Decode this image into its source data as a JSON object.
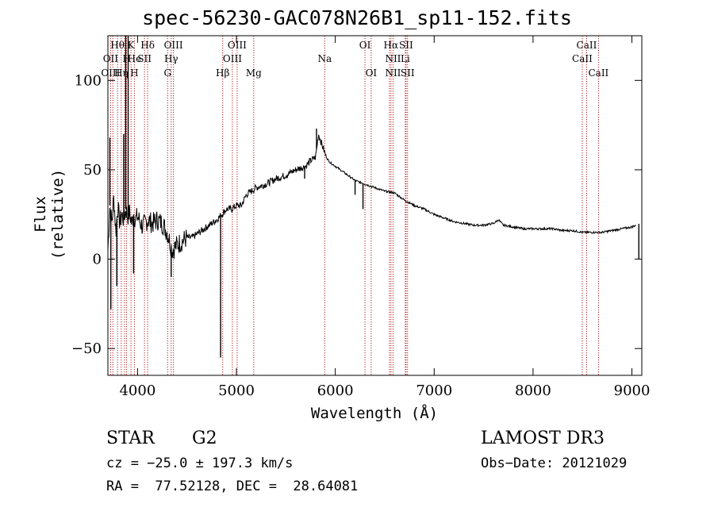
{
  "chart_data": {
    "type": "line",
    "title": "spec-56230-GAC078N26B1_sp11-152.fits",
    "xlabel": "Wavelength (Å)",
    "ylabel": "Flux (relative)",
    "xlim": [
      3700,
      9100
    ],
    "ylim": [
      -65,
      125
    ],
    "x_ticks": [
      4000,
      5000,
      6000,
      7000,
      8000,
      9000
    ],
    "x_tick_labels": [
      "4000",
      "5000",
      "6000",
      "7000",
      "8000",
      "9000"
    ],
    "y_ticks": [
      -50,
      0,
      50,
      100
    ],
    "y_tick_labels": [
      "−50",
      "0",
      "50",
      "100"
    ],
    "series": [
      {
        "name": "flux",
        "color": "#000000",
        "x": [
          3700,
          3720,
          3740,
          3760,
          3780,
          3800,
          3820,
          3840,
          3860,
          3880,
          3900,
          3920,
          3940,
          3960,
          3980,
          4000,
          4050,
          4100,
          4150,
          4200,
          4250,
          4300,
          4350,
          4400,
          4450,
          4500,
          4550,
          4600,
          4650,
          4700,
          4750,
          4800,
          4850,
          4900,
          4950,
          5000,
          5050,
          5100,
          5150,
          5200,
          5300,
          5400,
          5500,
          5600,
          5700,
          5750,
          5800,
          5830,
          5860,
          5890,
          5920,
          5950,
          6000,
          6100,
          6200,
          6300,
          6400,
          6500,
          6600,
          6700,
          6800,
          6900,
          7000,
          7100,
          7200,
          7300,
          7400,
          7500,
          7600,
          7650,
          7700,
          7800,
          7900,
          8000,
          8100,
          8200,
          8300,
          8400,
          8500,
          8600,
          8700,
          8800,
          8900,
          9000,
          9040
        ],
        "y": [
          5,
          30,
          20,
          35,
          15,
          30,
          20,
          25,
          22,
          28,
          24,
          26,
          20,
          25,
          22,
          24,
          18,
          22,
          20,
          22,
          20,
          15,
          5,
          8,
          10,
          12,
          12,
          14,
          16,
          18,
          20,
          22,
          25,
          28,
          28,
          30,
          30,
          36,
          38,
          40,
          42,
          45,
          47,
          50,
          52,
          55,
          57,
          70,
          65,
          60,
          56,
          54,
          52,
          48,
          44,
          42,
          40,
          38,
          37,
          33,
          30,
          28,
          25,
          23,
          21,
          20,
          19,
          19,
          20,
          22,
          19,
          18,
          17,
          17,
          17,
          17,
          16,
          16,
          15,
          15,
          15,
          16,
          17,
          18,
          19
        ]
      }
    ],
    "spikes": [
      {
        "x": 3720,
        "y": 68
      },
      {
        "x": 3730,
        "y": -28
      },
      {
        "x": 3790,
        "y": -15
      },
      {
        "x": 3880,
        "y": 130
      },
      {
        "x": 3905,
        "y": 125
      },
      {
        "x": 3860,
        "y": 70
      },
      {
        "x": 3960,
        "y": -8
      },
      {
        "x": 4340,
        "y": -10
      },
      {
        "x": 4840,
        "y": -55
      },
      {
        "x": 5690,
        "y": 45
      },
      {
        "x": 5810,
        "y": 73
      },
      {
        "x": 6200,
        "y": 36
      },
      {
        "x": 6280,
        "y": 28
      },
      {
        "x": 9070,
        "y": 0
      }
    ],
    "line_ids": [
      {
        "x": 3727,
        "color": "#b22222"
      },
      {
        "x": 3750,
        "color": "#b22222"
      },
      {
        "x": 3798,
        "color": "#b22222"
      },
      {
        "x": 3835,
        "color": "#b22222"
      },
      {
        "x": 3869,
        "color": "#b22222"
      },
      {
        "x": 3889,
        "color": "#b22222"
      },
      {
        "x": 3934,
        "color": "#b22222"
      },
      {
        "x": 3968,
        "color": "#b22222"
      },
      {
        "x": 4070,
        "color": "#b22222"
      },
      {
        "x": 4102,
        "color": "#b22222"
      },
      {
        "x": 4304,
        "color": "#b22222"
      },
      {
        "x": 4340,
        "color": "#b22222"
      },
      {
        "x": 4363,
        "color": "#b22222"
      },
      {
        "x": 4861,
        "color": "#b22222"
      },
      {
        "x": 4959,
        "color": "#b22222"
      },
      {
        "x": 5007,
        "color": "#b22222"
      },
      {
        "x": 5175,
        "color": "#b22222"
      },
      {
        "x": 5893,
        "color": "#b22222"
      },
      {
        "x": 6300,
        "color": "#b22222"
      },
      {
        "x": 6363,
        "color": "#b22222"
      },
      {
        "x": 6548,
        "color": "#b22222"
      },
      {
        "x": 6563,
        "color": "#b22222"
      },
      {
        "x": 6584,
        "color": "#b22222"
      },
      {
        "x": 6708,
        "color": "#b22222"
      },
      {
        "x": 6716,
        "color": "#b22222"
      },
      {
        "x": 6731,
        "color": "#b22222"
      },
      {
        "x": 8498,
        "color": "#b22222"
      },
      {
        "x": 8542,
        "color": "#b22222"
      },
      {
        "x": 8662,
        "color": "#b22222"
      }
    ],
    "line_labels": [
      {
        "text": "Hθ",
        "x": 3797,
        "row": 1
      },
      {
        "text": "K",
        "x": 3934,
        "row": 1
      },
      {
        "text": "Hδ",
        "x": 4102,
        "row": 1
      },
      {
        "text": "OIII",
        "x": 4363,
        "row": 1
      },
      {
        "text": "OIII",
        "x": 5007,
        "row": 1
      },
      {
        "text": "OI",
        "x": 6300,
        "row": 1
      },
      {
        "text": "Hα",
        "x": 6563,
        "row": 1
      },
      {
        "text": "SII",
        "x": 6716,
        "row": 1
      },
      {
        "text": "CaII",
        "x": 8542,
        "row": 1
      },
      {
        "text": "OII",
        "x": 3727,
        "row": 2
      },
      {
        "text": "H",
        "x": 3889,
        "row": 2
      },
      {
        "text": "He",
        "x": 3968,
        "row": 2
      },
      {
        "text": "SII",
        "x": 4070,
        "row": 2
      },
      {
        "text": "Hγ",
        "x": 4340,
        "row": 2
      },
      {
        "text": "OIII",
        "x": 4959,
        "row": 2
      },
      {
        "text": "Na",
        "x": 5893,
        "row": 2
      },
      {
        "text": "NII",
        "x": 6584,
        "row": 2
      },
      {
        "text": "Li",
        "x": 6708,
        "row": 2
      },
      {
        "text": "CaII",
        "x": 8498,
        "row": 2
      },
      {
        "text": "OIII",
        "x": 3727,
        "row": 3
      },
      {
        "text": "Hη",
        "x": 3835,
        "row": 3
      },
      {
        "text": "H",
        "x": 3968,
        "row": 3
      },
      {
        "text": "G",
        "x": 4304,
        "row": 3
      },
      {
        "text": "Hβ",
        "x": 4861,
        "row": 3
      },
      {
        "text": "Mg",
        "x": 5175,
        "row": 3
      },
      {
        "text": "OI",
        "x": 6363,
        "row": 3
      },
      {
        "text": "NII",
        "x": 6584,
        "row": 3
      },
      {
        "text": "SII",
        "x": 6731,
        "row": 3
      },
      {
        "text": "CaII",
        "x": 8662,
        "row": 3
      }
    ]
  },
  "info": {
    "object_class": "STAR",
    "subclass": "G2",
    "survey": "LAMOST DR3",
    "redshift": "cz = −25.0 ± 197.3 km/s",
    "obs_date": "Obs−Date: 20121029",
    "coords": "RA =  77.52128, DEC =  28.64081"
  }
}
